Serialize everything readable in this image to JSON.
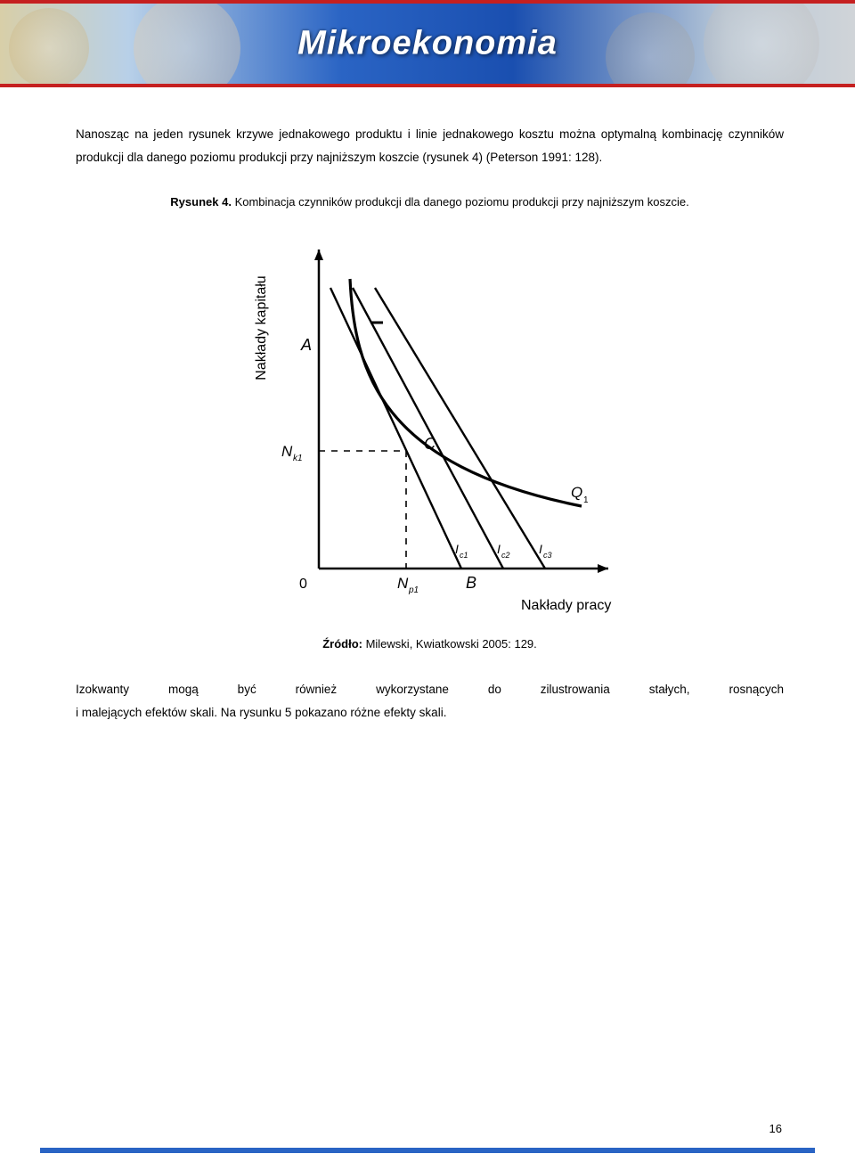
{
  "banner": {
    "title": "Mikroekonomia"
  },
  "text": {
    "p1": "Nanosząc na jeden rysunek krzywe jednakowego produktu i linie jednakowego kosztu można optymalną kombinację czynników produkcji dla danego poziomu produkcji przy najniższym koszcie (rysunek 4) (Peterson 1991: 128).",
    "fig_label": "Rysunek 4.",
    "fig_caption": " Kombinacja czynników produkcji dla danego poziomu produkcji przy najniższym koszcie.",
    "source_label": "Źródło:",
    "source_text": " Milewski, Kwiatkowski 2005: 129.",
    "p2": "Izokwanty mogą być również wykorzystane do zilustrowania stałych, rosnących i malejących efektów skali. Na rysunku 5 pokazano różne efekty skali."
  },
  "chart": {
    "type": "diagram",
    "background": "#ffffff",
    "axis_color": "#000000",
    "curve_color": "#000000",
    "dash_color": "#000000",
    "y_axis_label": "Nakłady kapitału",
    "x_axis_label": "Nakłady pracy",
    "label_fontsize": 16,
    "label_A": "A",
    "label_B": "B",
    "label_C": "C",
    "label_Q1": "Q",
    "label_Q1_sub": "1",
    "label_Nk1": "N",
    "label_Nk1_sub": "k1",
    "label_Np1": "N",
    "label_Np1_sub": "p1",
    "label_Ic1": "I",
    "label_Ic1_sub": "c1",
    "label_Ic2": "I",
    "label_Ic2_sub": "c2",
    "label_Ic3": "I",
    "label_Ic3_sub": "c3",
    "label_0": "0",
    "axis_width": 2.5,
    "curve_width": 3.2,
    "iso_line_width": 2.4
  },
  "page_number": "16"
}
